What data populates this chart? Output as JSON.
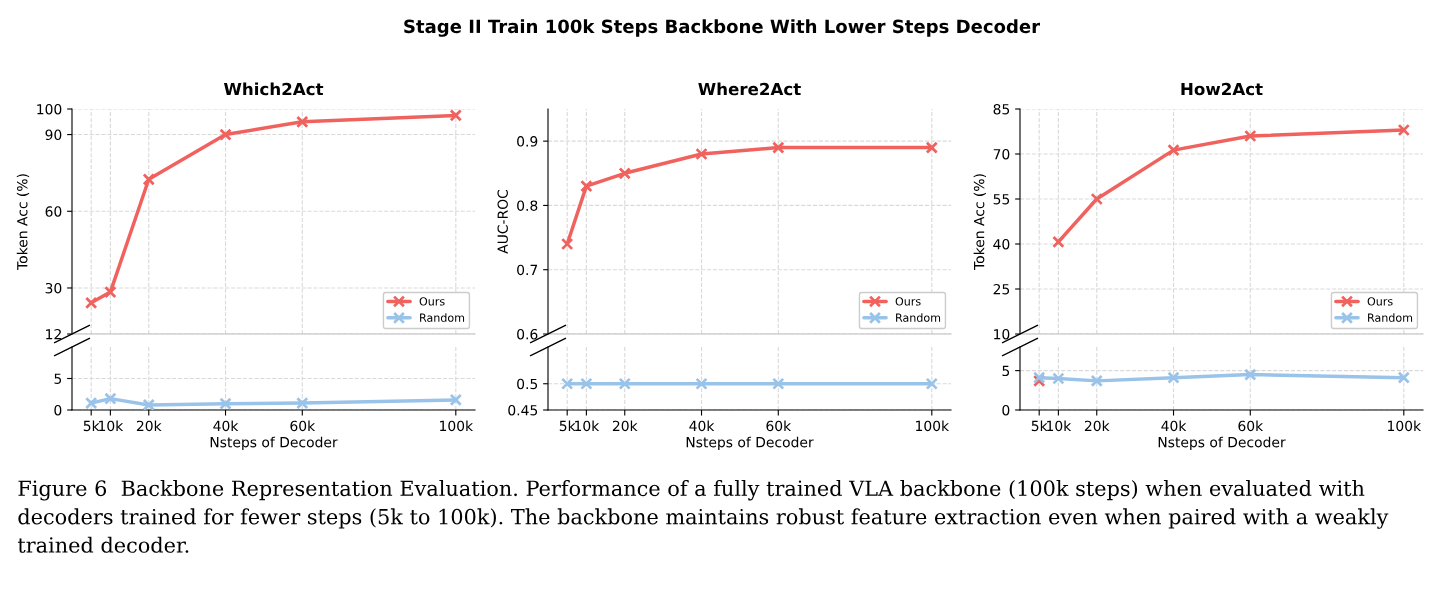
{
  "chart_data": [
    {
      "type": "line",
      "title": "Which2Act",
      "ylabel": "Token Acc (%)",
      "annotations": [
        "Stage II Train 100k Steps Backbone With Lower Steps Decoder",
        "Figure 6  Backbone Representation Evaluation. Performance of a fully trained VLA backbone (100k steps) when evaluated with decoders trained for fewer steps (5k to 100k). The backbone maintains robust feature extraction even when paired with a weakly trained decoder."
      ],
      "x": [
        5,
        10,
        20,
        40,
        60,
        100
      ],
      "xlim": [
        0,
        105
      ],
      "xticks": [
        {
          "value": 5,
          "label": null
        },
        {
          "value": 10,
          "label": null
        },
        {
          "value": 20,
          "label": null
        },
        {
          "value": 40,
          "label": null
        },
        {
          "value": 60,
          "label": null
        },
        {
          "value": 100,
          "label": null
        }
      ],
      "ylim": [
        12,
        100
      ],
      "yticks": [
        12,
        30,
        60,
        90,
        100
      ],
      "tick_labels": "y",
      "grid": true,
      "marker": "cross",
      "line_style": "solid",
      "legend": "bottom right",
      "series": [
        {
          "name": "Ours",
          "color": "#f0625e",
          "values": [
            24.2,
            28.4,
            72.5,
            90,
            95,
            97.5
          ]
        },
        {
          "name": "Random",
          "color": "#9ac3ea",
          "values": [
            null,
            null,
            null,
            null,
            null,
            null
          ]
        }
      ]
    },
    {
      "type": "line",
      "xlabel": "Nsteps of Decoder",
      "x": [
        5,
        10,
        20,
        40,
        60,
        100
      ],
      "xlim": [
        0,
        105
      ],
      "xticks": [
        {
          "value": 5,
          "label": "5k"
        },
        {
          "value": 10,
          "label": "10k"
        },
        {
          "value": 20,
          "label": "20k"
        },
        {
          "value": 40,
          "label": "40k"
        },
        {
          "value": 60,
          "label": "60k"
        },
        {
          "value": 100,
          "label": "100k"
        }
      ],
      "ylim": [
        0,
        10
      ],
      "yticks": [
        0,
        5
      ],
      "grid": true,
      "marker": "cross",
      "line_style": "solid",
      "series": [
        {
          "color": "#f0625e",
          "values": [
            null,
            null,
            null,
            null,
            null,
            null
          ]
        },
        {
          "color": "#9ac3ea",
          "values": [
            1.1,
            1.8,
            0.8,
            1.0,
            1.1,
            1.6
          ]
        }
      ]
    },
    {
      "type": "line",
      "title": "Where2Act",
      "ylabel": "AUC-ROC",
      "x": [
        5,
        10,
        20,
        40,
        60,
        100
      ],
      "xlim": [
        0,
        105
      ],
      "xticks": [
        {
          "value": 5,
          "label": null
        },
        {
          "value": 10,
          "label": null
        },
        {
          "value": 20,
          "label": null
        },
        {
          "value": 40,
          "label": null
        },
        {
          "value": 60,
          "label": null
        },
        {
          "value": 100,
          "label": null
        }
      ],
      "ylim": [
        0.6,
        0.95
      ],
      "yticks": [
        0.6,
        0.7,
        0.8,
        0.9
      ],
      "tick_labels": "y",
      "grid": true,
      "marker": "cross",
      "line_style": "solid",
      "legend": "bottom right",
      "series": [
        {
          "name": "Ours",
          "color": "#f0625e",
          "values": [
            0.74,
            0.83,
            0.85,
            0.88,
            0.89,
            0.89
          ]
        },
        {
          "name": "Random",
          "color": "#9ac3ea",
          "values": [
            null,
            null,
            null,
            null,
            null,
            null
          ]
        }
      ]
    },
    {
      "type": "line",
      "xlabel": "Nsteps of Decoder",
      "x": [
        5,
        10,
        20,
        40,
        60,
        100
      ],
      "xlim": [
        0,
        105
      ],
      "xticks": [
        {
          "value": 5,
          "label": "5k"
        },
        {
          "value": 10,
          "label": "10k"
        },
        {
          "value": 20,
          "label": "20k"
        },
        {
          "value": 40,
          "label": "40k"
        },
        {
          "value": 60,
          "label": "60k"
        },
        {
          "value": 100,
          "label": "100k"
        }
      ],
      "ylim": [
        0.45,
        0.57
      ],
      "yticks": [
        0.45,
        0.5
      ],
      "grid": true,
      "marker": "cross",
      "line_style": "solid",
      "series": [
        {
          "color": "#f0625e",
          "values": [
            null,
            null,
            null,
            null,
            null,
            null
          ]
        },
        {
          "color": "#9ac3ea",
          "values": [
            0.5,
            0.5,
            0.5,
            0.5,
            0.5,
            0.5
          ]
        }
      ]
    },
    {
      "type": "line",
      "title": "How2Act",
      "ylabel": "Token Acc (%)",
      "x": [
        10,
        20,
        40,
        60,
        100
      ],
      "xlim": [
        0,
        105
      ],
      "xticks": [
        {
          "value": 5,
          "label": null
        },
        {
          "value": 10,
          "label": null
        },
        {
          "value": 20,
          "label": null
        },
        {
          "value": 40,
          "label": null
        },
        {
          "value": 60,
          "label": null
        },
        {
          "value": 100,
          "label": null
        }
      ],
      "ylim": [
        10,
        85
      ],
      "yticks": [
        10,
        25,
        40,
        55,
        70,
        85
      ],
      "tick_labels": "y",
      "grid": true,
      "marker": "cross",
      "line_style": "solid",
      "legend": "bottom right",
      "series": [
        {
          "name": "Ours",
          "color": "#f0625e",
          "values": [
            40.7,
            55,
            71.3,
            76,
            78
          ]
        },
        {
          "name": "Random",
          "color": "#9ac3ea",
          "values": [
            null,
            null,
            null,
            null,
            null
          ]
        }
      ]
    },
    {
      "type": "line",
      "xlabel": "Nsteps of Decoder",
      "x": [
        5,
        10,
        20,
        40,
        60,
        100
      ],
      "xlim": [
        0,
        105
      ],
      "xticks": [
        {
          "value": 5,
          "label": "5k"
        },
        {
          "value": 10,
          "label": "10k"
        },
        {
          "value": 20,
          "label": "20k"
        },
        {
          "value": 40,
          "label": "40k"
        },
        {
          "value": 60,
          "label": "60k"
        },
        {
          "value": 100,
          "label": "100k"
        }
      ],
      "ylim": [
        0,
        8
      ],
      "yticks": [
        0,
        5
      ],
      "grid": true,
      "marker": "cross",
      "line_style": "solid",
      "series": [
        {
          "color": "#f0625e",
          "values": [
            3.7,
            null,
            null,
            null,
            null,
            null
          ]
        },
        {
          "color": "#9ac3ea",
          "values": [
            4.1,
            4.0,
            3.7,
            4.1,
            4.5,
            4.1
          ]
        }
      ]
    }
  ]
}
